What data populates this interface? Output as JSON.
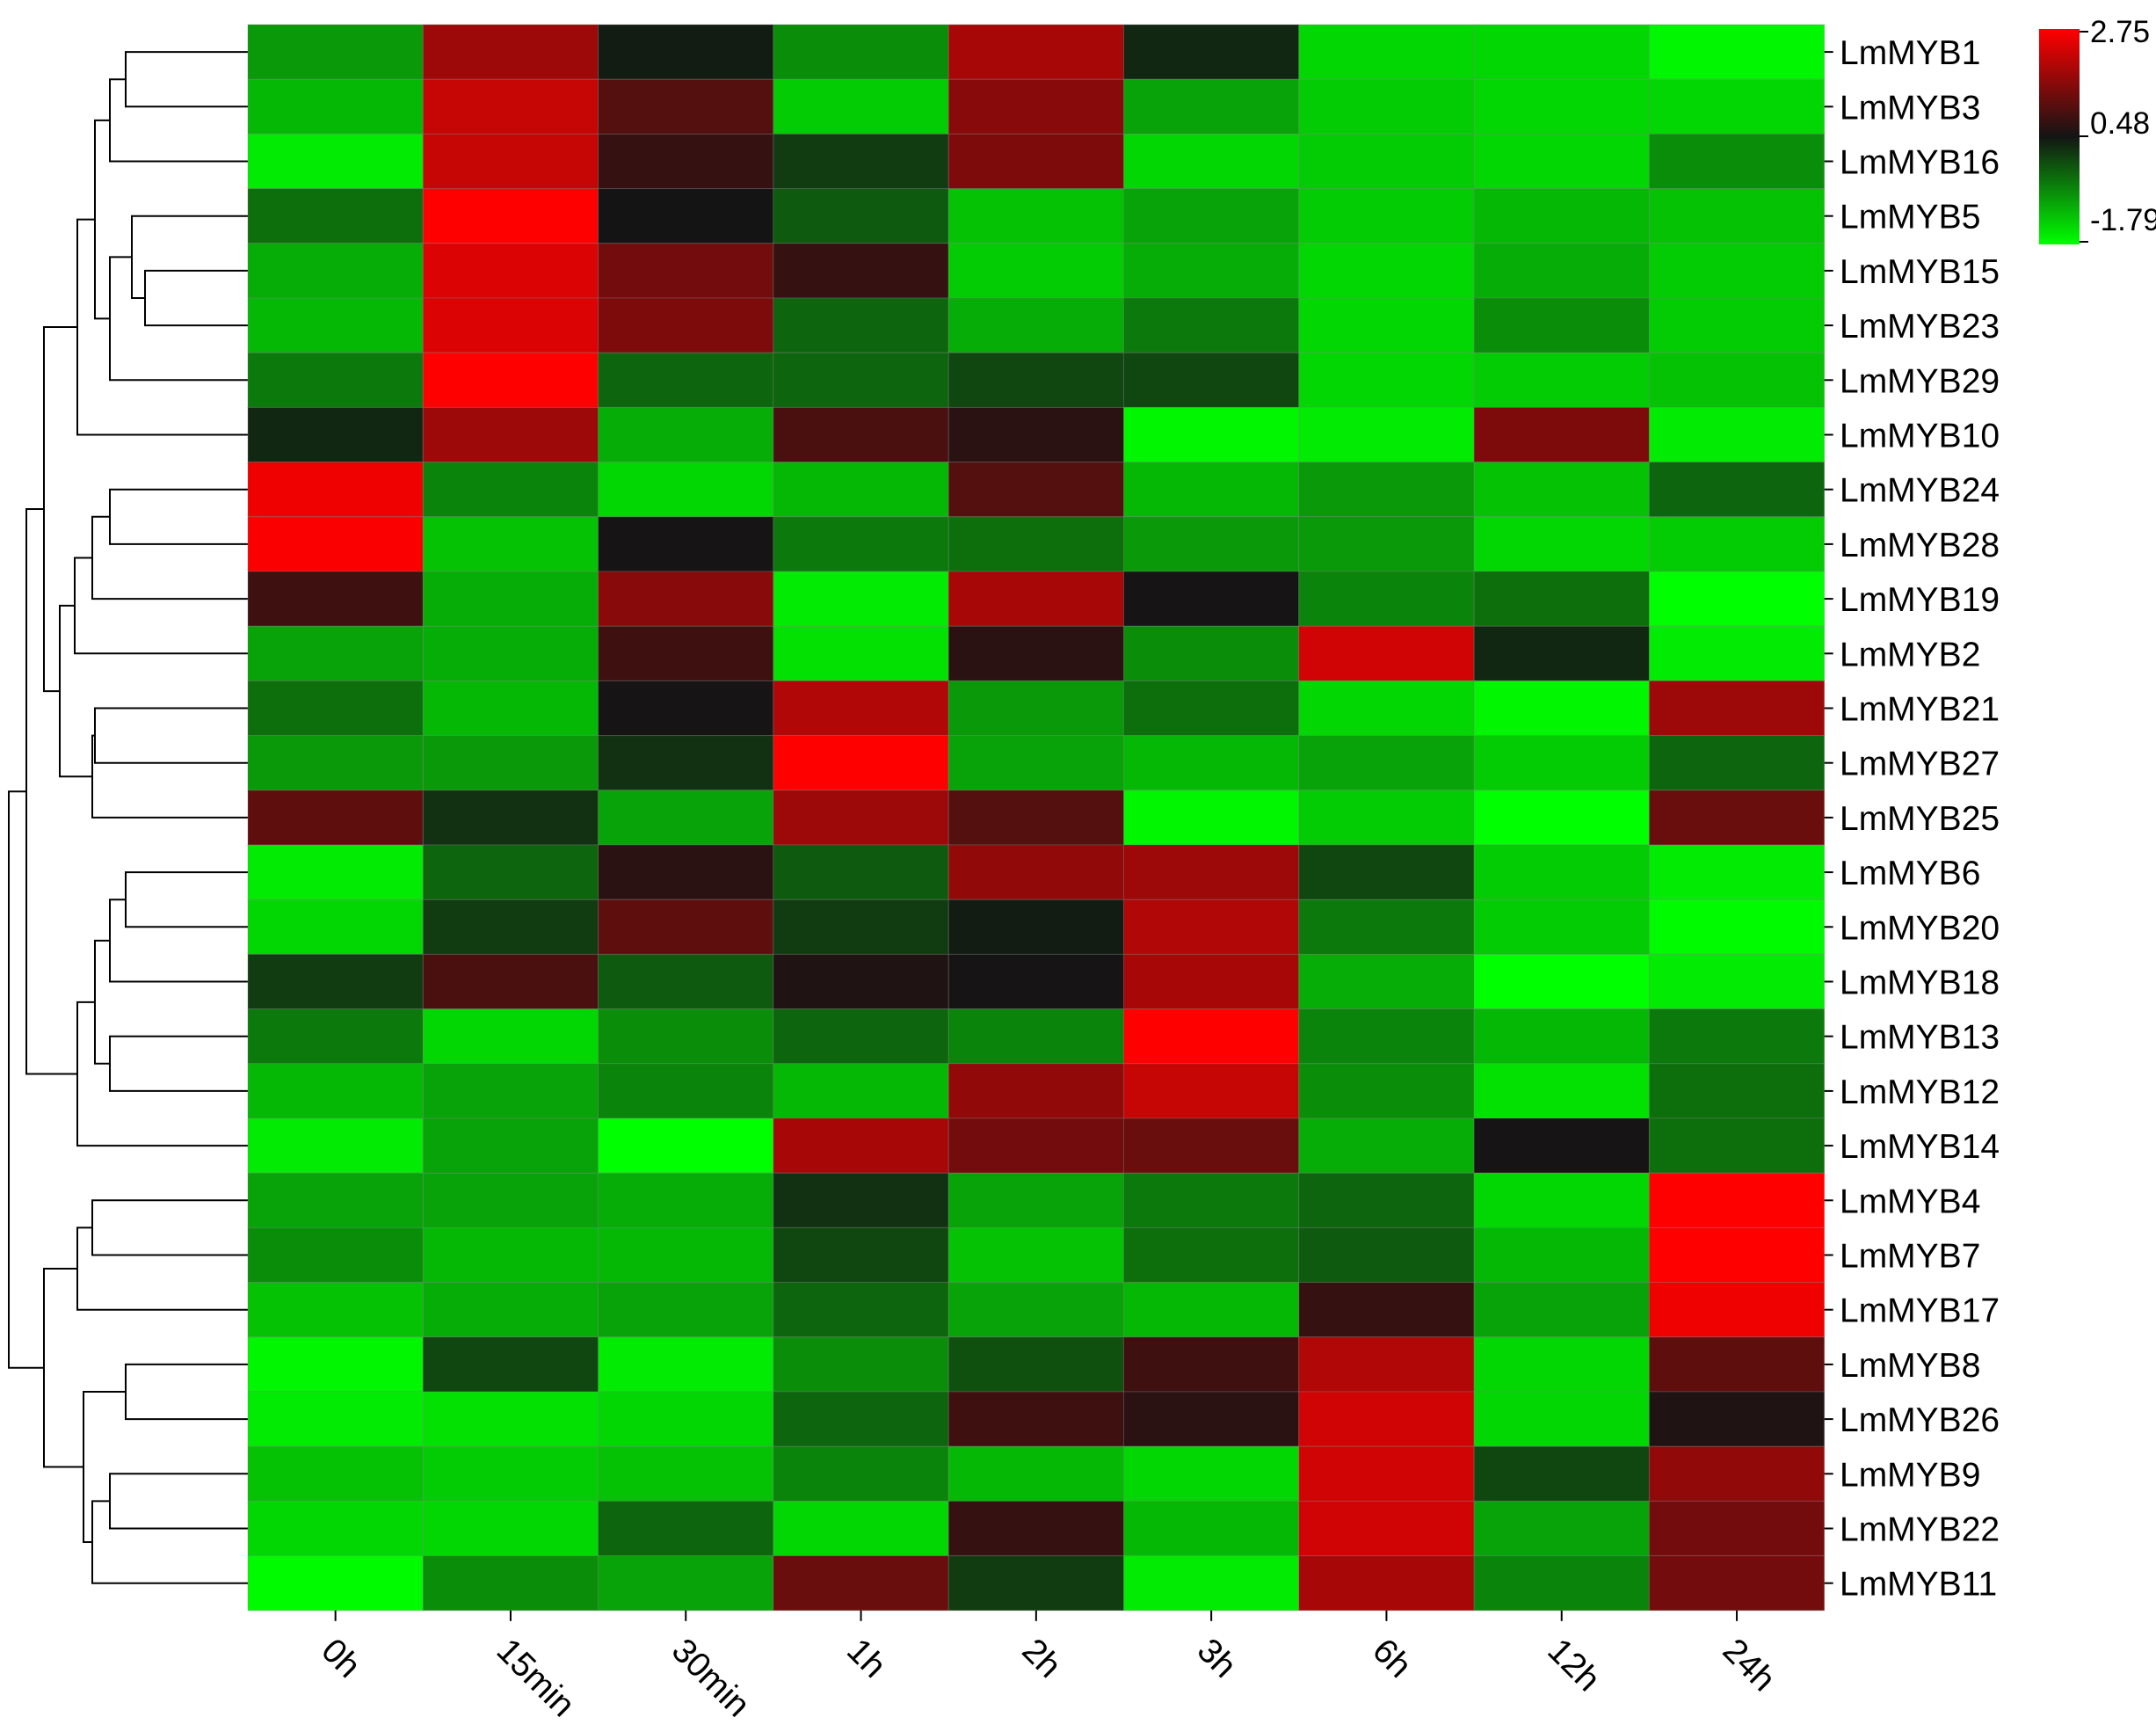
{
  "chart_data": {
    "type": "heatmap",
    "color_scale": {
      "min": -1.79,
      "mid": 0.48,
      "max": 2.75,
      "low_color": "#00ff00",
      "mid_color": "#141414",
      "high_color": "#ff0000",
      "tick_labels": [
        "2.75",
        "0.48",
        "-1.79"
      ]
    },
    "columns": [
      "0h",
      "15min",
      "30min",
      "1h",
      "2h",
      "3h",
      "6h",
      "12h",
      "24h"
    ],
    "rows": [
      "LmMYB1",
      "LmMYB3",
      "LmMYB16",
      "LmMYB5",
      "LmMYB15",
      "LmMYB23",
      "LmMYB29",
      "LmMYB10",
      "LmMYB24",
      "LmMYB28",
      "LmMYB19",
      "LmMYB2",
      "LmMYB21",
      "LmMYB27",
      "LmMYB25",
      "LmMYB6",
      "LmMYB20",
      "LmMYB18",
      "LmMYB13",
      "LmMYB12",
      "LmMYB14",
      "LmMYB4",
      "LmMYB7",
      "LmMYB17",
      "LmMYB8",
      "LmMYB26",
      "LmMYB9",
      "LmMYB22",
      "LmMYB11"
    ],
    "values": [
      [
        -0.8,
        1.8,
        0.4,
        -0.7,
        1.9,
        0.3,
        -1.4,
        -1.4,
        -1.7
      ],
      [
        -1.1,
        2.2,
        1.1,
        -1.3,
        1.6,
        -0.9,
        -1.3,
        -1.4,
        -1.4
      ],
      [
        -1.6,
        2.2,
        0.8,
        0.1,
        1.5,
        -1.4,
        -1.3,
        -1.4,
        -0.7
      ],
      [
        -0.4,
        2.75,
        0.48,
        -0.2,
        -1.2,
        -0.9,
        -1.3,
        -1.1,
        -1.2
      ],
      [
        -1.0,
        2.4,
        1.4,
        0.8,
        -1.3,
        -1.0,
        -1.4,
        -1.0,
        -1.3
      ],
      [
        -1.1,
        2.4,
        1.5,
        -0.3,
        -1.0,
        -0.5,
        -1.4,
        -0.7,
        -1.3
      ],
      [
        -0.5,
        2.75,
        -0.3,
        -0.3,
        0.0,
        0.0,
        -1.4,
        -1.3,
        -1.2
      ],
      [
        0.3,
        1.8,
        -1.0,
        1.0,
        0.7,
        -1.7,
        -1.6,
        1.5,
        -1.6
      ],
      [
        2.6,
        -0.6,
        -1.4,
        -1.1,
        1.1,
        -1.1,
        -0.8,
        -1.2,
        -0.3
      ],
      [
        2.7,
        -1.2,
        0.5,
        -0.5,
        -0.4,
        -0.8,
        -0.8,
        -1.4,
        -1.3
      ],
      [
        0.9,
        -1.0,
        1.6,
        -1.6,
        1.9,
        0.5,
        -0.6,
        -0.4,
        -1.79
      ],
      [
        -0.9,
        -1.0,
        0.9,
        -1.5,
        0.7,
        -0.7,
        2.3,
        0.3,
        -1.6
      ],
      [
        -0.4,
        -1.1,
        0.5,
        2.0,
        -0.8,
        -0.4,
        -1.4,
        -1.7,
        1.8
      ],
      [
        -0.8,
        -0.8,
        0.2,
        2.75,
        -0.9,
        -1.1,
        -0.9,
        -1.3,
        -0.3
      ],
      [
        1.2,
        0.2,
        -0.9,
        1.8,
        1.1,
        -1.7,
        -1.3,
        -1.79,
        1.3
      ],
      [
        -1.6,
        -0.3,
        0.7,
        -0.2,
        1.7,
        1.8,
        0.0,
        -1.3,
        -1.6
      ],
      [
        -1.4,
        0.1,
        1.2,
        0.1,
        0.4,
        2.0,
        -0.5,
        -1.3,
        -1.75
      ],
      [
        0.1,
        1.0,
        -0.2,
        0.6,
        0.5,
        1.9,
        -1.0,
        -1.79,
        -1.6
      ],
      [
        -0.5,
        -1.4,
        -0.7,
        -0.3,
        -0.6,
        2.75,
        -0.6,
        -1.1,
        -0.5
      ],
      [
        -1.1,
        -0.9,
        -0.6,
        -1.1,
        1.7,
        2.2,
        -0.7,
        -1.5,
        -0.4
      ],
      [
        -1.6,
        -0.9,
        -1.79,
        1.9,
        1.4,
        1.3,
        -1.0,
        0.5,
        -0.4
      ],
      [
        -0.9,
        -0.9,
        -1.0,
        0.2,
        -0.9,
        -0.5,
        -0.3,
        -1.4,
        2.75
      ],
      [
        -0.7,
        -1.1,
        -1.1,
        0.0,
        -1.2,
        -0.4,
        -0.2,
        -1.1,
        2.75
      ],
      [
        -1.2,
        -1.0,
        -0.9,
        -0.3,
        -0.9,
        -1.1,
        0.8,
        -0.9,
        2.6
      ],
      [
        -1.7,
        0.0,
        -1.6,
        -0.7,
        -0.1,
        0.9,
        2.0,
        -1.4,
        1.2
      ],
      [
        -1.6,
        -1.5,
        -1.4,
        -0.3,
        0.9,
        0.7,
        2.3,
        -1.4,
        0.6
      ],
      [
        -1.2,
        -1.3,
        -1.2,
        -0.6,
        -1.1,
        -1.4,
        2.3,
        0.0,
        1.7
      ],
      [
        -1.4,
        -1.4,
        -0.3,
        -1.4,
        0.8,
        -1.1,
        2.3,
        -0.9,
        1.4
      ],
      [
        -1.75,
        -0.7,
        -0.9,
        1.3,
        0.1,
        -1.6,
        1.9,
        -0.6,
        1.4
      ]
    ],
    "title": "",
    "xlabel": "",
    "ylabel": "",
    "legend_position": "top-right",
    "dendrogram": "left"
  }
}
